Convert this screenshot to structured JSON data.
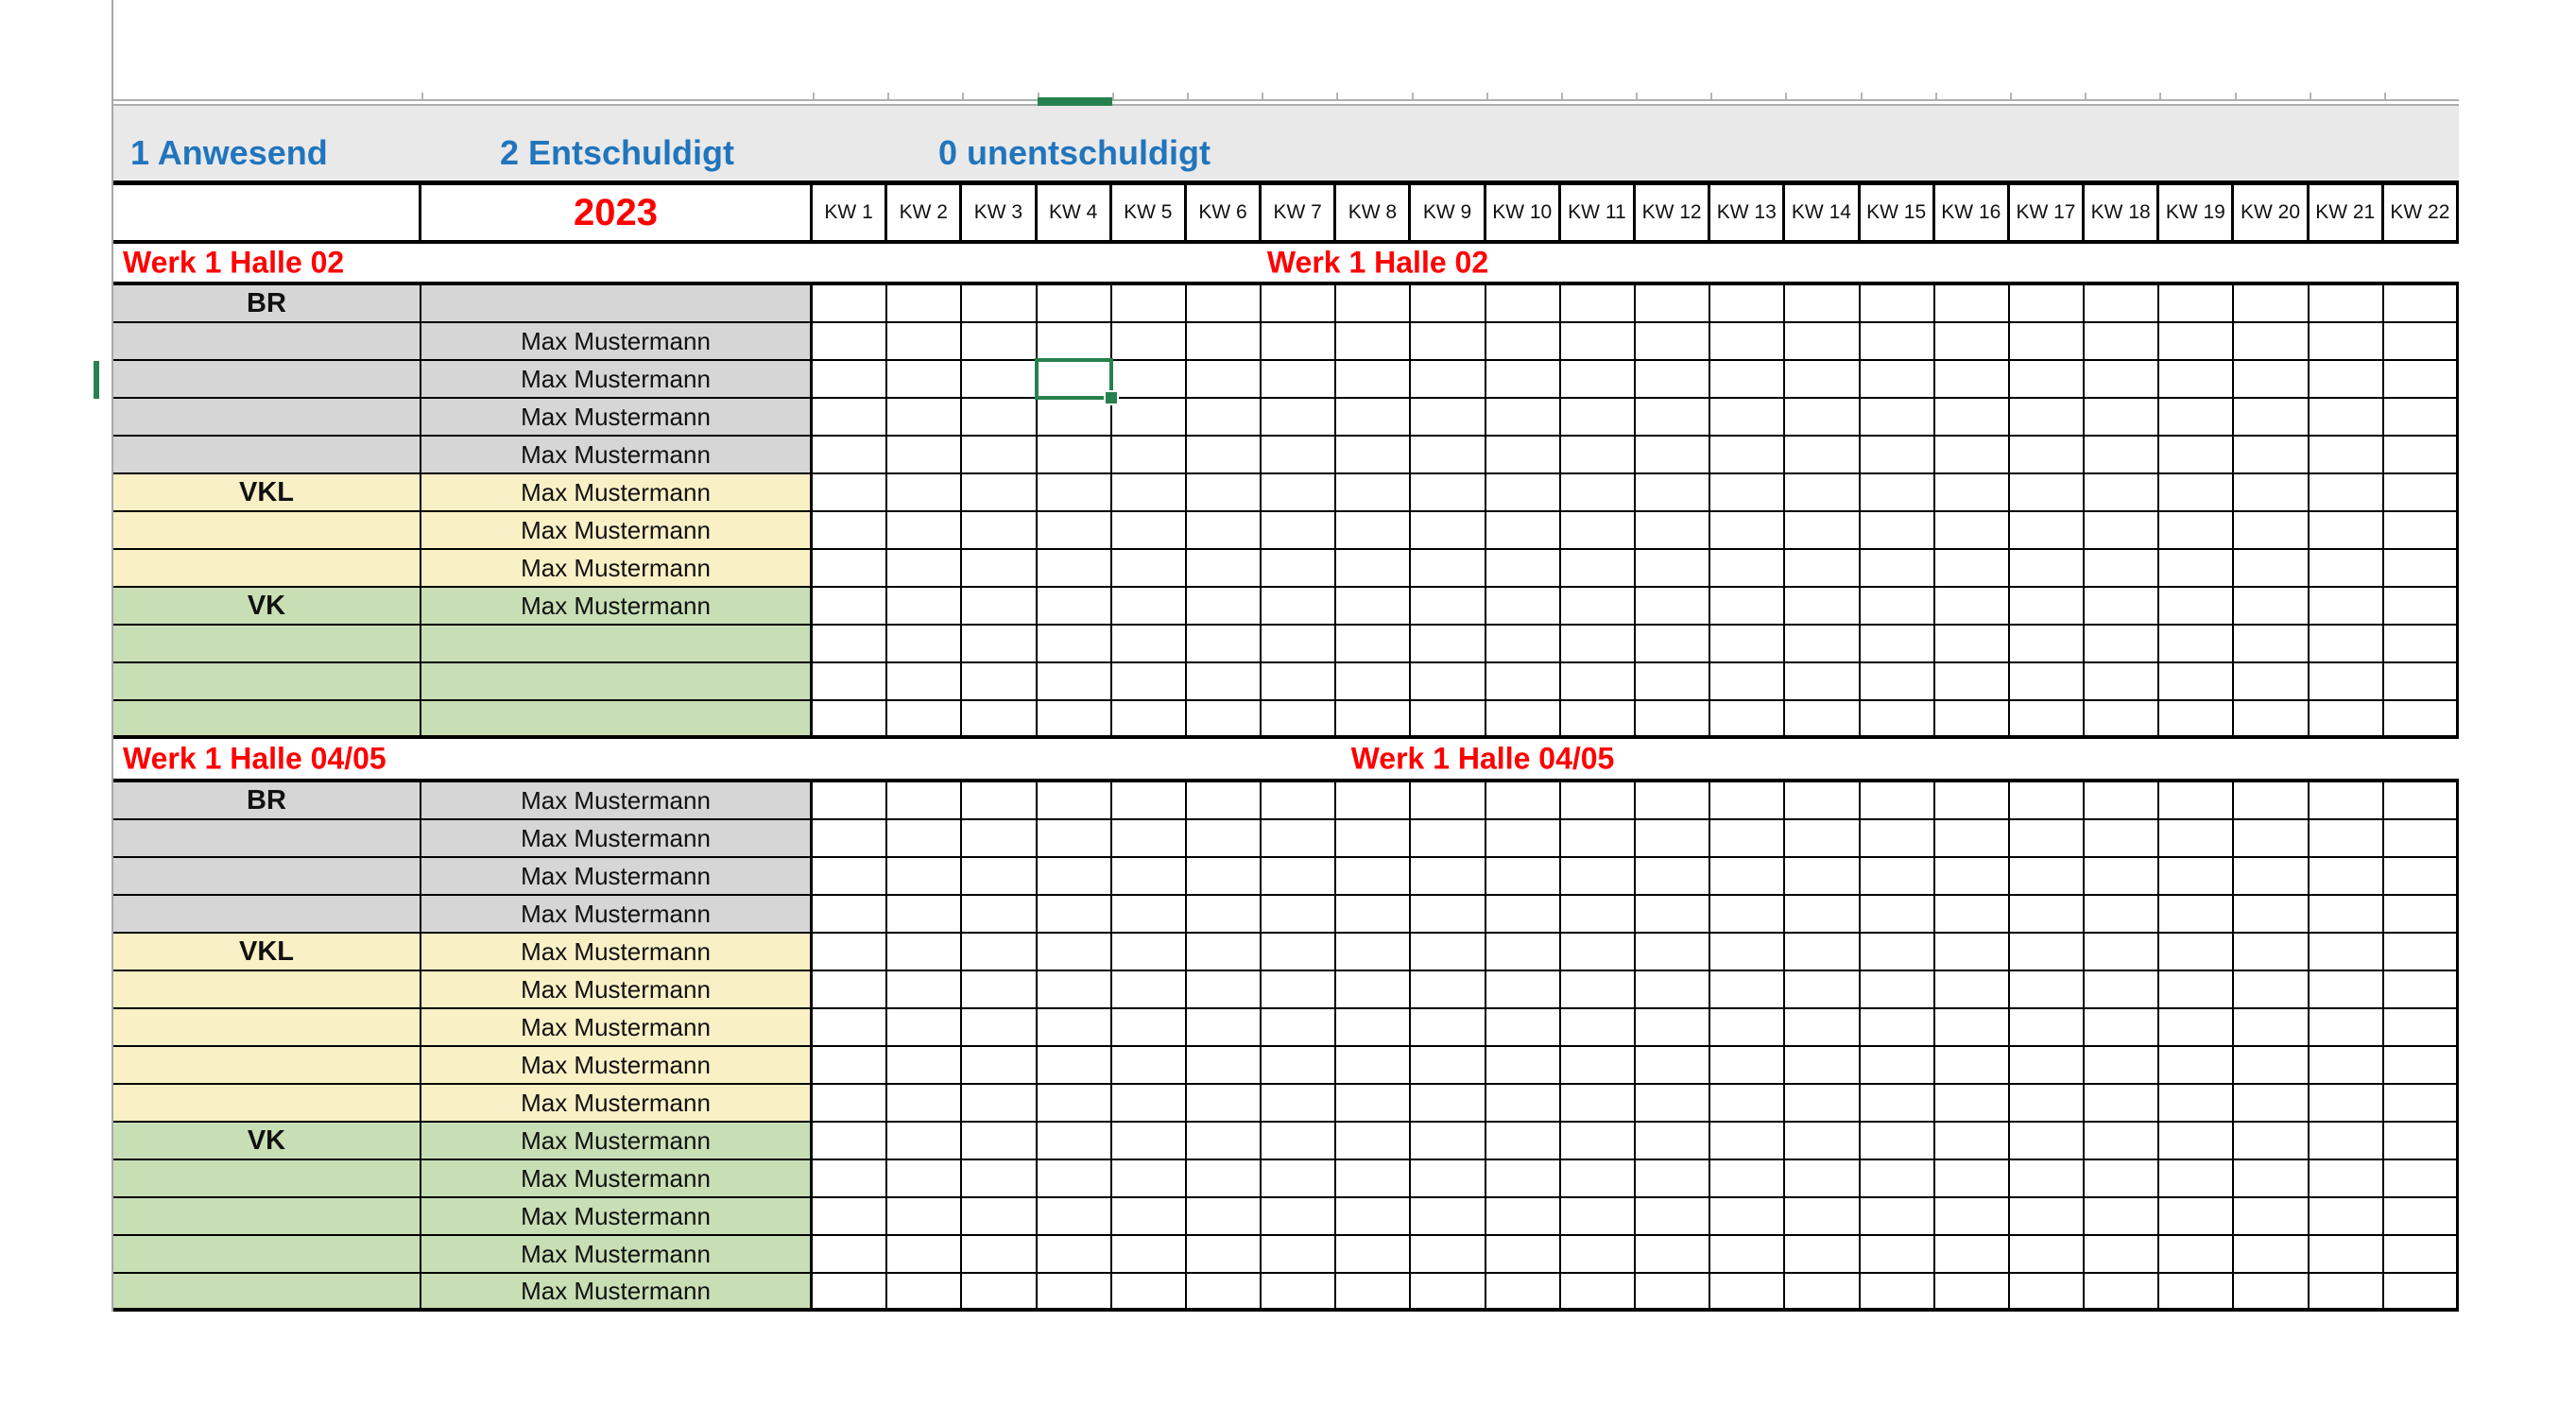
{
  "legend": {
    "present": "1 Anwesend",
    "excused": "2 Entschuldigt",
    "unexcused": "0 unentschuldigt"
  },
  "year_label": "2023",
  "week_columns": [
    "KW 1",
    "KW 2",
    "KW 3",
    "KW 4",
    "KW 5",
    "KW 6",
    "KW 7",
    "KW 8",
    "KW 9",
    "KW 10",
    "KW 11",
    "KW 12",
    "KW 13",
    "KW 14",
    "KW 15",
    "KW 16",
    "KW 17",
    "KW 18",
    "KW 19",
    "KW 20",
    "KW 21",
    "KW 22"
  ],
  "sections": [
    {
      "title_left": "Werk 1 Halle 02",
      "title_center": "Werk 1 Halle 02",
      "rows": [
        {
          "group": "BR",
          "name": "",
          "color": "gray"
        },
        {
          "group": "",
          "name": "Max Mustermann",
          "color": "gray"
        },
        {
          "group": "",
          "name": "Max Mustermann",
          "color": "gray"
        },
        {
          "group": "",
          "name": "Max Mustermann",
          "color": "gray"
        },
        {
          "group": "",
          "name": "Max Mustermann",
          "color": "gray"
        },
        {
          "group": "VKL",
          "name": "Max Mustermann",
          "color": "yellow"
        },
        {
          "group": "",
          "name": "Max Mustermann",
          "color": "yellow"
        },
        {
          "group": "",
          "name": "Max Mustermann",
          "color": "yellow"
        },
        {
          "group": "VK",
          "name": "Max Mustermann",
          "color": "green"
        },
        {
          "group": "",
          "name": "",
          "color": "green"
        },
        {
          "group": "",
          "name": "",
          "color": "green"
        },
        {
          "group": "",
          "name": "",
          "color": "green"
        }
      ]
    },
    {
      "title_left": "Werk 1 Halle 04/05",
      "title_center": "Werk 1 Halle 04/05",
      "rows": [
        {
          "group": "BR",
          "name": "Max Mustermann",
          "color": "gray"
        },
        {
          "group": "",
          "name": "Max Mustermann",
          "color": "gray"
        },
        {
          "group": "",
          "name": "Max Mustermann",
          "color": "gray"
        },
        {
          "group": "",
          "name": "Max Mustermann",
          "color": "gray"
        },
        {
          "group": "VKL",
          "name": "Max Mustermann",
          "color": "yellow"
        },
        {
          "group": "",
          "name": "Max Mustermann",
          "color": "yellow"
        },
        {
          "group": "",
          "name": "Max Mustermann",
          "color": "yellow"
        },
        {
          "group": "",
          "name": "Max Mustermann",
          "color": "yellow"
        },
        {
          "group": "",
          "name": "Max Mustermann",
          "color": "yellow"
        },
        {
          "group": "VK",
          "name": "Max Mustermann",
          "color": "green"
        },
        {
          "group": "",
          "name": "Max Mustermann",
          "color": "green"
        },
        {
          "group": "",
          "name": "Max Mustermann",
          "color": "green"
        },
        {
          "group": "",
          "name": "Max Mustermann",
          "color": "green"
        },
        {
          "group": "",
          "name": "Max Mustermann",
          "color": "green"
        }
      ]
    }
  ],
  "selection": {
    "week": "KW 4",
    "section_index": 0,
    "row_index": 2,
    "week_index": 3
  },
  "colors": {
    "header_blue": "#2175BC",
    "accent_red": "#FF0000",
    "band_gray": "#E9E9E9",
    "gray_row": "#D6D6D6",
    "yellow_row": "#FAF0C6",
    "green_row": "#C8DFB5",
    "selection_green": "#27814E",
    "grid_line": "#000000"
  }
}
